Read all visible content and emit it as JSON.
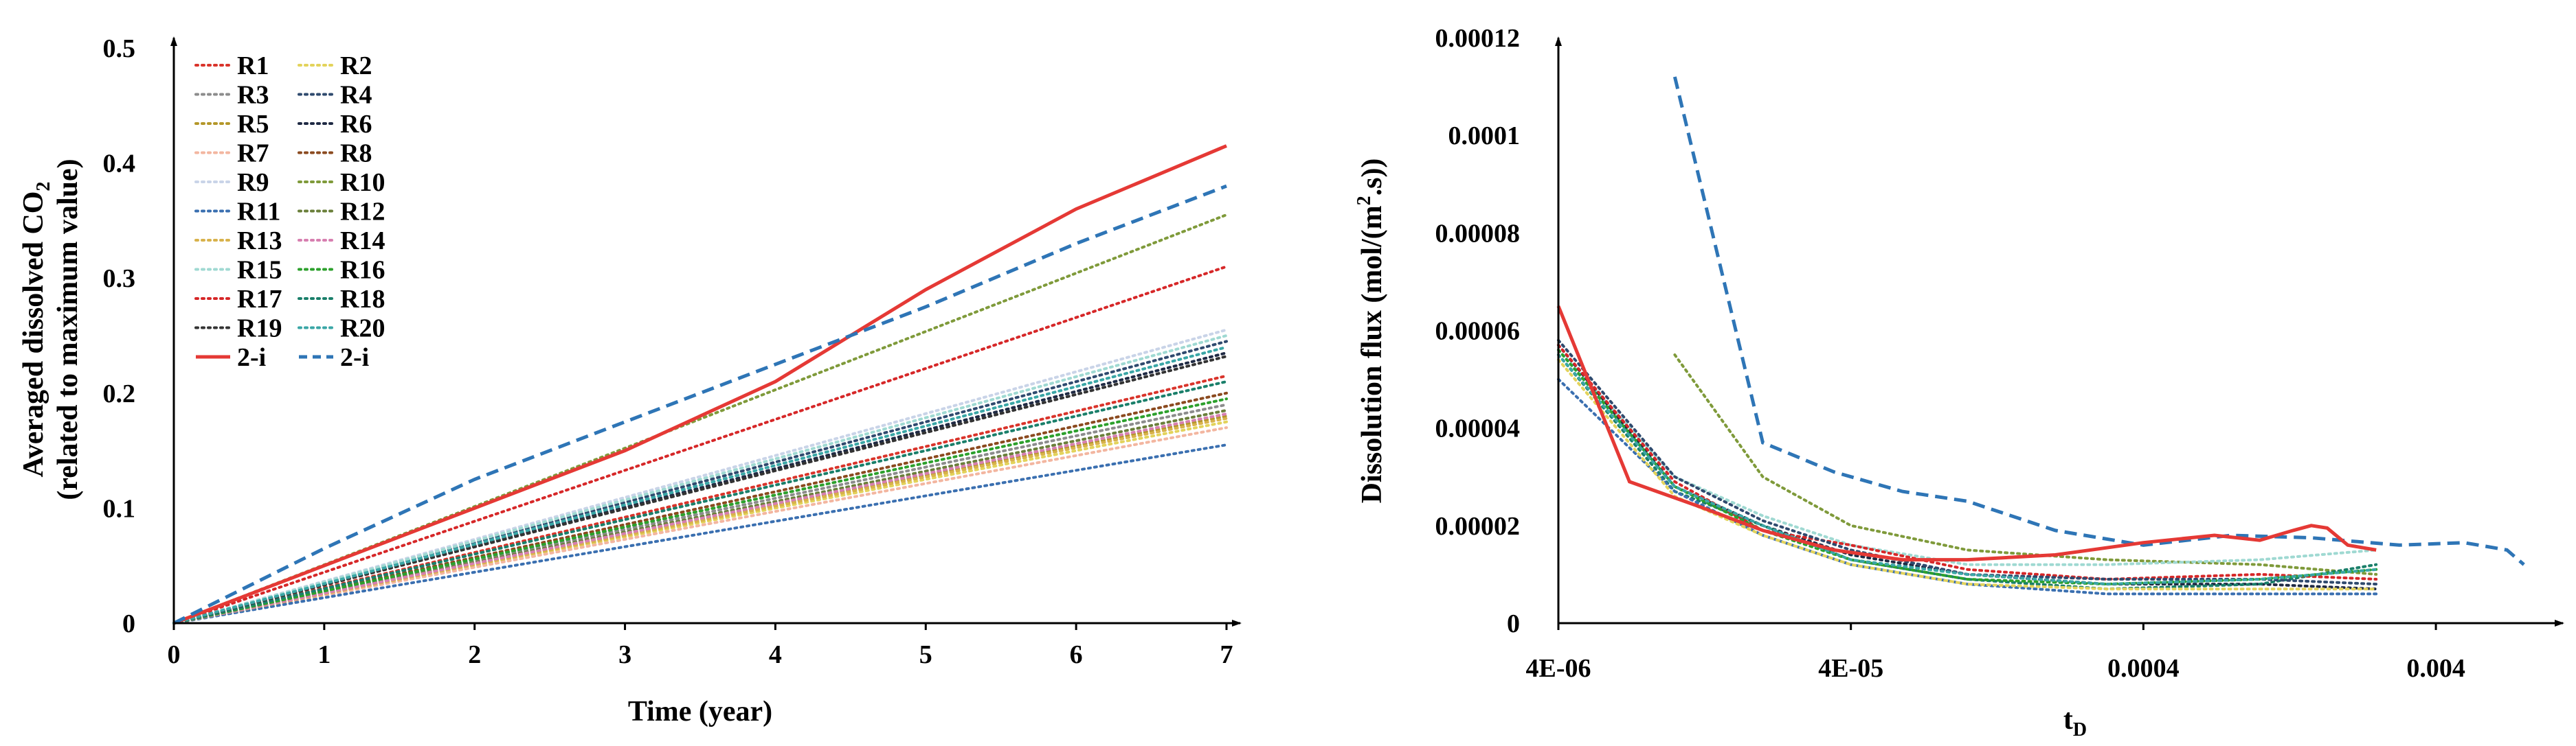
{
  "chart_data": [
    {
      "type": "line",
      "title": "",
      "xlabel": "Time (year)",
      "ylabel_line1": "Averaged dissolved CO",
      "ylabel_sub": "2",
      "ylabel_line2": "(related to maximum value)",
      "xlim": [
        0,
        7
      ],
      "ylim": [
        0,
        0.5
      ],
      "xticks": [
        0,
        1,
        2,
        3,
        4,
        5,
        6,
        7
      ],
      "xtick_labels": [
        "0",
        "1",
        "2",
        "3",
        "4",
        "5",
        "6",
        "7"
      ],
      "yticks": [
        0,
        0.1,
        0.2,
        0.3,
        0.4,
        0.5
      ],
      "ytick_labels": [
        "0",
        "0.1",
        "0.2",
        "0.3",
        "0.4",
        "0.5"
      ],
      "legend_position": "top-left",
      "series": [
        {
          "name": "R1",
          "color": "#d9342b",
          "style": "dotted",
          "x": [
            0,
            7
          ],
          "y": [
            0,
            0.215
          ]
        },
        {
          "name": "R2",
          "color": "#e3d35b",
          "style": "dotted",
          "x": [
            0,
            7
          ],
          "y": [
            0,
            0.175
          ]
        },
        {
          "name": "R3",
          "color": "#8c8c8c",
          "style": "dotted",
          "x": [
            0,
            7
          ],
          "y": [
            0,
            0.19
          ]
        },
        {
          "name": "R4",
          "color": "#2f4a6e",
          "style": "dotted",
          "x": [
            0,
            7
          ],
          "y": [
            0,
            0.245
          ]
        },
        {
          "name": "R5",
          "color": "#b4972a",
          "style": "dotted",
          "x": [
            0,
            7
          ],
          "y": [
            0,
            0.18
          ]
        },
        {
          "name": "R6",
          "color": "#1f2a44",
          "style": "dotted",
          "x": [
            0,
            7
          ],
          "y": [
            0,
            0.235
          ]
        },
        {
          "name": "R7",
          "color": "#f3b6a0",
          "style": "dotted",
          "x": [
            0,
            7
          ],
          "y": [
            0,
            0.17
          ]
        },
        {
          "name": "R8",
          "color": "#8b4a1f",
          "style": "dotted",
          "x": [
            0,
            7
          ],
          "y": [
            0,
            0.2
          ]
        },
        {
          "name": "R9",
          "color": "#c9d4e8",
          "style": "dotted",
          "x": [
            0,
            7
          ],
          "y": [
            0,
            0.255
          ]
        },
        {
          "name": "R10",
          "color": "#7f9a3a",
          "style": "dotted",
          "x": [
            0,
            7
          ],
          "y": [
            0,
            0.355
          ]
        },
        {
          "name": "R11",
          "color": "#3a6fb0",
          "style": "dotted",
          "x": [
            0,
            7
          ],
          "y": [
            0,
            0.155
          ]
        },
        {
          "name": "R12",
          "color": "#6a7f3a",
          "style": "dotted",
          "x": [
            0,
            7
          ],
          "y": [
            0,
            0.185
          ]
        },
        {
          "name": "R13",
          "color": "#d8b24c",
          "style": "dotted",
          "x": [
            0,
            7
          ],
          "y": [
            0,
            0.178
          ]
        },
        {
          "name": "R14",
          "color": "#d77fb0",
          "style": "dotted",
          "x": [
            0,
            7
          ],
          "y": [
            0,
            0.182
          ]
        },
        {
          "name": "R15",
          "color": "#9fd9d2",
          "style": "dotted",
          "x": [
            0,
            7
          ],
          "y": [
            0,
            0.25
          ]
        },
        {
          "name": "R16",
          "color": "#2ca02c",
          "style": "dotted",
          "x": [
            0,
            7
          ],
          "y": [
            0,
            0.195
          ]
        },
        {
          "name": "R17",
          "color": "#d62728",
          "style": "dotted",
          "x": [
            0,
            7
          ],
          "y": [
            0,
            0.31
          ]
        },
        {
          "name": "R18",
          "color": "#1a7f6a",
          "style": "dotted",
          "x": [
            0,
            7
          ],
          "y": [
            0,
            0.21
          ]
        },
        {
          "name": "R19",
          "color": "#333333",
          "style": "dotted",
          "x": [
            0,
            7
          ],
          "y": [
            0,
            0.232
          ]
        },
        {
          "name": "R20",
          "color": "#3aa6a6",
          "style": "dotted",
          "x": [
            0,
            7
          ],
          "y": [
            0,
            0.24
          ]
        },
        {
          "name": "2-i",
          "color": "#e53935",
          "style": "solid",
          "x": [
            0,
            1,
            2,
            3,
            4,
            5,
            6,
            7
          ],
          "y": [
            0,
            0.05,
            0.1,
            0.15,
            0.21,
            0.29,
            0.36,
            0.415
          ]
        },
        {
          "name": "2-i",
          "color": "#2e75b6",
          "style": "dashed",
          "x": [
            0,
            1,
            2,
            3,
            4,
            5,
            6,
            7
          ],
          "y": [
            0,
            0.065,
            0.125,
            0.175,
            0.225,
            0.275,
            0.33,
            0.38
          ]
        }
      ]
    },
    {
      "type": "line",
      "title": "",
      "xlabel": "t",
      "xlabel_sub": "D",
      "ylabel": "Dissolution flux (mol/(m",
      "ylabel_sup": "2",
      "ylabel_end": ".s))",
      "xscale": "log",
      "xlim": [
        4e-06,
        0.009
      ],
      "ylim": [
        0,
        0.00012
      ],
      "xticks": [
        4e-06,
        4e-05,
        0.0004,
        0.004
      ],
      "xtick_labels": [
        "4E-06",
        "4E-05",
        "0.0004",
        "0.004"
      ],
      "yticks": [
        0,
        2e-05,
        4e-05,
        6e-05,
        8e-05,
        0.0001,
        0.00012
      ],
      "ytick_labels": [
        "0",
        "0.00002",
        "0.00004",
        "0.00006",
        "0.00008",
        "0.0001",
        "0.00012"
      ],
      "series": [
        {
          "name": "2-i",
          "color": "#e53935",
          "style": "solid",
          "x": [
            4e-06,
            7e-06,
            1.2e-05,
            2e-05,
            3.5e-05,
            6e-05,
            0.0001,
            0.0002,
            0.0004,
            0.0007,
            0.001,
            0.0013,
            0.0015,
            0.0017,
            0.002,
            0.0025
          ],
          "y": [
            6.5e-05,
            2.9e-05,
            2.4e-05,
            1.9e-05,
            1.5e-05,
            1.3e-05,
            1.3e-05,
            1.4e-05,
            1.65e-05,
            1.8e-05,
            1.7e-05,
            1.9e-05,
            2e-05,
            1.95e-05,
            1.6e-05,
            1.5e-05
          ]
        },
        {
          "name": "2-i",
          "color": "#2e75b6",
          "style": "dashed",
          "x": [
            1e-05,
            2e-05,
            3.5e-05,
            6e-05,
            0.0001,
            0.0002,
            0.0004,
            0.0008,
            0.0015,
            0.003,
            0.005,
            0.007,
            0.008
          ],
          "y": [
            0.000112,
            3.7e-05,
            3.1e-05,
            2.7e-05,
            2.5e-05,
            1.9e-05,
            1.6e-05,
            1.8e-05,
            1.75e-05,
            1.6e-05,
            1.65e-05,
            1.5e-05,
            1.2e-05
          ]
        },
        {
          "name": "R10",
          "color": "#7f9a3a",
          "style": "dotted",
          "x": [
            1e-05,
            2e-05,
            4e-05,
            0.0001,
            0.0003,
            0.001,
            0.0025
          ],
          "y": [
            5.5e-05,
            3e-05,
            2e-05,
            1.5e-05,
            1.3e-05,
            1.2e-05,
            1e-05
          ]
        },
        {
          "name": "R15",
          "color": "#9fd9d2",
          "style": "dotted",
          "x": [
            4e-06,
            1e-05,
            2e-05,
            4e-05,
            0.0001,
            0.0003,
            0.001,
            0.0025
          ],
          "y": [
            5.6e-05,
            3e-05,
            2.2e-05,
            1.6e-05,
            1.2e-05,
            1.2e-05,
            1.3e-05,
            1.5e-05
          ]
        },
        {
          "name": "R6",
          "color": "#1f2a44",
          "style": "dotted",
          "x": [
            4e-06,
            1e-05,
            2e-05,
            4e-05,
            0.0001,
            0.0003,
            0.001,
            0.0025
          ],
          "y": [
            5.7e-05,
            2.8e-05,
            2e-05,
            1.4e-05,
            1e-05,
            8e-06,
            8e-06,
            7e-06
          ]
        },
        {
          "name": "R18",
          "color": "#1a7f6a",
          "style": "dotted",
          "x": [
            4e-06,
            1e-05,
            2e-05,
            4e-05,
            0.0001,
            0.0003,
            0.001,
            0.0025
          ],
          "y": [
            5.5e-05,
            2.7e-05,
            2e-05,
            1.3e-05,
            9e-06,
            7e-06,
            8e-06,
            1.2e-05
          ]
        },
        {
          "name": "R17",
          "color": "#d62728",
          "style": "dotted",
          "x": [
            4e-06,
            1e-05,
            2e-05,
            4e-05,
            0.0001,
            0.0003,
            0.001,
            0.0025
          ],
          "y": [
            5.7e-05,
            2.9e-05,
            1.9e-05,
            1.6e-05,
            1.1e-05,
            9e-06,
            1e-05,
            9e-06
          ]
        },
        {
          "name": "R11",
          "color": "#3a6fb0",
          "style": "dotted",
          "x": [
            4e-06,
            1e-05,
            2e-05,
            4e-05,
            0.0001,
            0.0003,
            0.001,
            0.0025
          ],
          "y": [
            5e-05,
            2.7e-05,
            1.8e-05,
            1.2e-05,
            8e-06,
            6e-06,
            6e-06,
            6e-06
          ]
        },
        {
          "name": "R4",
          "color": "#2f4a6e",
          "style": "dotted",
          "x": [
            4e-06,
            1e-05,
            2e-05,
            4e-05,
            0.0001,
            0.0003,
            0.001,
            0.0025
          ],
          "y": [
            5.8e-05,
            3e-05,
            2.1e-05,
            1.5e-05,
            1e-05,
            9e-06,
            9e-06,
            8e-06
          ]
        },
        {
          "name": "R16",
          "color": "#2ca02c",
          "style": "dotted",
          "x": [
            4e-06,
            1e-05,
            2e-05,
            4e-05,
            0.0001,
            0.0003,
            0.001,
            0.0025
          ],
          "y": [
            5.6e-05,
            2.8e-05,
            1.9e-05,
            1.3e-05,
            9e-06,
            8e-06,
            9e-06,
            1.1e-05
          ]
        },
        {
          "name": "R2",
          "color": "#e3d35b",
          "style": "dotted",
          "x": [
            4e-06,
            1e-05,
            2e-05,
            4e-05,
            0.0001,
            0.0003,
            0.001,
            0.0025
          ],
          "y": [
            5.4e-05,
            2.6e-05,
            1.8e-05,
            1.2e-05,
            8e-06,
            7e-06,
            7e-06,
            7e-06
          ]
        },
        {
          "name": "R20",
          "color": "#3aa6a6",
          "style": "dotted",
          "x": [
            4e-06,
            1e-05,
            2e-05,
            4e-05,
            0.0001,
            0.0003,
            0.001,
            0.0025
          ],
          "y": [
            5.5e-05,
            2.8e-05,
            2e-05,
            1.3e-05,
            1e-05,
            8e-06,
            9e-06,
            1.1e-05
          ]
        }
      ]
    }
  ],
  "legend": [
    {
      "label": "R1",
      "color": "#d9342b",
      "style": "dotted"
    },
    {
      "label": "R2",
      "color": "#e3d35b",
      "style": "dotted"
    },
    {
      "label": "R3",
      "color": "#8c8c8c",
      "style": "dotted"
    },
    {
      "label": "R4",
      "color": "#2f4a6e",
      "style": "dotted"
    },
    {
      "label": "R5",
      "color": "#b4972a",
      "style": "dotted"
    },
    {
      "label": "R6",
      "color": "#1f2a44",
      "style": "dotted"
    },
    {
      "label": "R7",
      "color": "#f3b6a0",
      "style": "dotted"
    },
    {
      "label": "R8",
      "color": "#8b4a1f",
      "style": "dotted"
    },
    {
      "label": "R9",
      "color": "#c9d4e8",
      "style": "dotted"
    },
    {
      "label": "R10",
      "color": "#7f9a3a",
      "style": "dotted"
    },
    {
      "label": "R11",
      "color": "#3a6fb0",
      "style": "dotted"
    },
    {
      "label": "R12",
      "color": "#6a7f3a",
      "style": "dotted"
    },
    {
      "label": "R13",
      "color": "#d8b24c",
      "style": "dotted"
    },
    {
      "label": "R14",
      "color": "#d77fb0",
      "style": "dotted"
    },
    {
      "label": "R15",
      "color": "#9fd9d2",
      "style": "dotted"
    },
    {
      "label": "R16",
      "color": "#2ca02c",
      "style": "dotted"
    },
    {
      "label": "R17",
      "color": "#d62728",
      "style": "dotted"
    },
    {
      "label": "R18",
      "color": "#1a7f6a",
      "style": "dotted"
    },
    {
      "label": "R19",
      "color": "#333333",
      "style": "dotted"
    },
    {
      "label": "R20",
      "color": "#3aa6a6",
      "style": "dotted"
    },
    {
      "label": "2-i",
      "color": "#e53935",
      "style": "solid"
    },
    {
      "label": "2-i",
      "color": "#2e75b6",
      "style": "dashed"
    }
  ]
}
